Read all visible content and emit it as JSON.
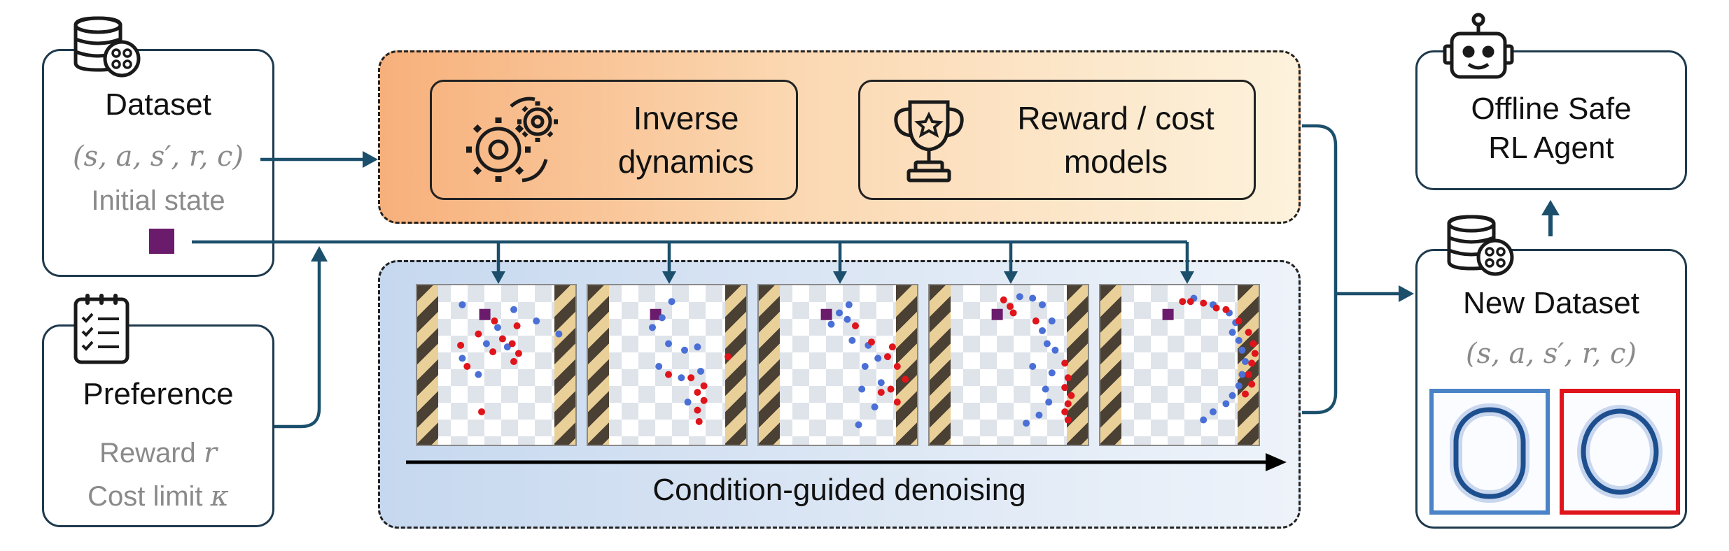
{
  "dataset": {
    "title": "Dataset",
    "tuple": "(s, a, s′, r, c)",
    "initial_state_label": "Initial state"
  },
  "preference": {
    "title": "Preference",
    "reward_text": "Reward",
    "reward_symbol": "r",
    "cost_text": "Cost limit",
    "cost_symbol": "κ"
  },
  "models": {
    "inverse_dynamics_line1": "Inverse",
    "inverse_dynamics_line2": "dynamics",
    "reward_cost_line1": "Reward / cost",
    "reward_cost_line2": "models"
  },
  "denoising": {
    "label": "Condition-guided denoising",
    "frames": [
      {
        "blue": [
          [
            0.28,
            0.12
          ],
          [
            0.6,
            0.15
          ],
          [
            0.74,
            0.22
          ],
          [
            0.5,
            0.26
          ],
          [
            0.88,
            0.3
          ],
          [
            0.43,
            0.36
          ],
          [
            0.28,
            0.45
          ],
          [
            0.56,
            0.38
          ],
          [
            0.38,
            0.55
          ]
        ],
        "red": [
          [
            0.48,
            0.22
          ],
          [
            0.38,
            0.3
          ],
          [
            0.62,
            0.25
          ],
          [
            0.53,
            0.33
          ],
          [
            0.59,
            0.36
          ],
          [
            0.27,
            0.37
          ],
          [
            0.47,
            0.41
          ],
          [
            0.63,
            0.42
          ],
          [
            0.31,
            0.5
          ],
          [
            0.6,
            0.47
          ],
          [
            0.4,
            0.78
          ]
        ]
      },
      {
        "blue": [
          [
            0.52,
            0.1
          ],
          [
            0.46,
            0.2
          ],
          [
            0.4,
            0.26
          ],
          [
            0.5,
            0.36
          ],
          [
            0.6,
            0.4
          ],
          [
            0.68,
            0.38
          ],
          [
            0.44,
            0.5
          ],
          [
            0.58,
            0.57
          ],
          [
            0.7,
            0.53
          ],
          [
            0.62,
            0.72
          ]
        ],
        "red": [
          [
            0.87,
            0.44
          ],
          [
            0.5,
            0.55
          ],
          [
            0.64,
            0.57
          ],
          [
            0.72,
            0.62
          ],
          [
            0.68,
            0.66
          ],
          [
            0.72,
            0.71
          ],
          [
            0.68,
            0.77
          ],
          [
            0.69,
            0.84
          ]
        ]
      },
      {
        "blue": [
          [
            0.56,
            0.12
          ],
          [
            0.5,
            0.17
          ],
          [
            0.55,
            0.21
          ],
          [
            0.45,
            0.24
          ],
          [
            0.58,
            0.34
          ],
          [
            0.68,
            0.37
          ],
          [
            0.74,
            0.45
          ],
          [
            0.66,
            0.5
          ],
          [
            0.76,
            0.6
          ],
          [
            0.64,
            0.64
          ],
          [
            0.72,
            0.75
          ],
          [
            0.62,
            0.86
          ]
        ],
        "red": [
          [
            0.6,
            0.25
          ],
          [
            0.7,
            0.35
          ],
          [
            0.83,
            0.38
          ],
          [
            0.8,
            0.44
          ],
          [
            0.86,
            0.5
          ],
          [
            0.91,
            0.58
          ],
          [
            0.76,
            0.66
          ],
          [
            0.82,
            0.64
          ],
          [
            0.86,
            0.72
          ]
        ]
      },
      {
        "blue": [
          [
            0.56,
            0.07
          ],
          [
            0.64,
            0.08
          ],
          [
            0.7,
            0.12
          ],
          [
            0.76,
            0.22
          ],
          [
            0.7,
            0.28
          ],
          [
            0.73,
            0.36
          ],
          [
            0.78,
            0.4
          ],
          [
            0.64,
            0.5
          ],
          [
            0.76,
            0.54
          ],
          [
            0.72,
            0.64
          ],
          [
            0.74,
            0.72
          ],
          [
            0.68,
            0.8
          ],
          [
            0.6,
            0.85
          ]
        ],
        "red": [
          [
            0.46,
            0.09
          ],
          [
            0.5,
            0.13
          ],
          [
            0.52,
            0.17
          ],
          [
            0.66,
            0.22
          ],
          [
            0.84,
            0.48
          ],
          [
            0.86,
            0.57
          ],
          [
            0.84,
            0.63
          ],
          [
            0.88,
            0.68
          ],
          [
            0.86,
            0.73
          ],
          [
            0.84,
            0.78
          ],
          [
            0.86,
            0.83
          ]
        ]
      },
      {
        "blue": [
          [
            0.58,
            0.08
          ],
          [
            0.7,
            0.12
          ],
          [
            0.8,
            0.17
          ],
          [
            0.84,
            0.23
          ],
          [
            0.82,
            0.29
          ],
          [
            0.86,
            0.34
          ],
          [
            0.88,
            0.4
          ],
          [
            0.9,
            0.47
          ],
          [
            0.88,
            0.55
          ],
          [
            0.86,
            0.62
          ],
          [
            0.82,
            0.68
          ],
          [
            0.78,
            0.73
          ],
          [
            0.7,
            0.78
          ],
          [
            0.64,
            0.83
          ]
        ],
        "red": [
          [
            0.51,
            0.1
          ],
          [
            0.56,
            0.1
          ],
          [
            0.64,
            0.11
          ],
          [
            0.72,
            0.14
          ],
          [
            0.78,
            0.15
          ],
          [
            0.86,
            0.22
          ],
          [
            0.92,
            0.29
          ],
          [
            0.95,
            0.36
          ],
          [
            0.96,
            0.42
          ],
          [
            0.94,
            0.48
          ],
          [
            0.92,
            0.55
          ],
          [
            0.94,
            0.61
          ],
          [
            0.9,
            0.67
          ]
        ]
      }
    ]
  },
  "agent": {
    "line1": "Offline Safe",
    "line2": "RL Agent"
  },
  "new_dataset": {
    "title": "New Dataset",
    "tuple": "(s, a, s′, r, c)"
  },
  "colors": {
    "arrow": "#1b4f6b",
    "box_border": "#1f3a4d",
    "orange_gradient_start": "#f7b07b",
    "orange_gradient_end": "#fdf2dc",
    "blue_gradient_start": "#c6d8ef",
    "blue_gradient_end": "#eef3fa",
    "initial_state": "#6b1b6b",
    "blue_point": "#4a6fd6",
    "red_point": "#e0141b",
    "blue_frame": "#4a84c6",
    "red_frame": "#e0141b",
    "grey_text": "#8a8a8a"
  },
  "icons": [
    "database-icon",
    "clipboard-checklist-icon",
    "gears-icon",
    "trophy-icon",
    "robot-icon",
    "database-icon",
    "arrow-right-icon"
  ]
}
